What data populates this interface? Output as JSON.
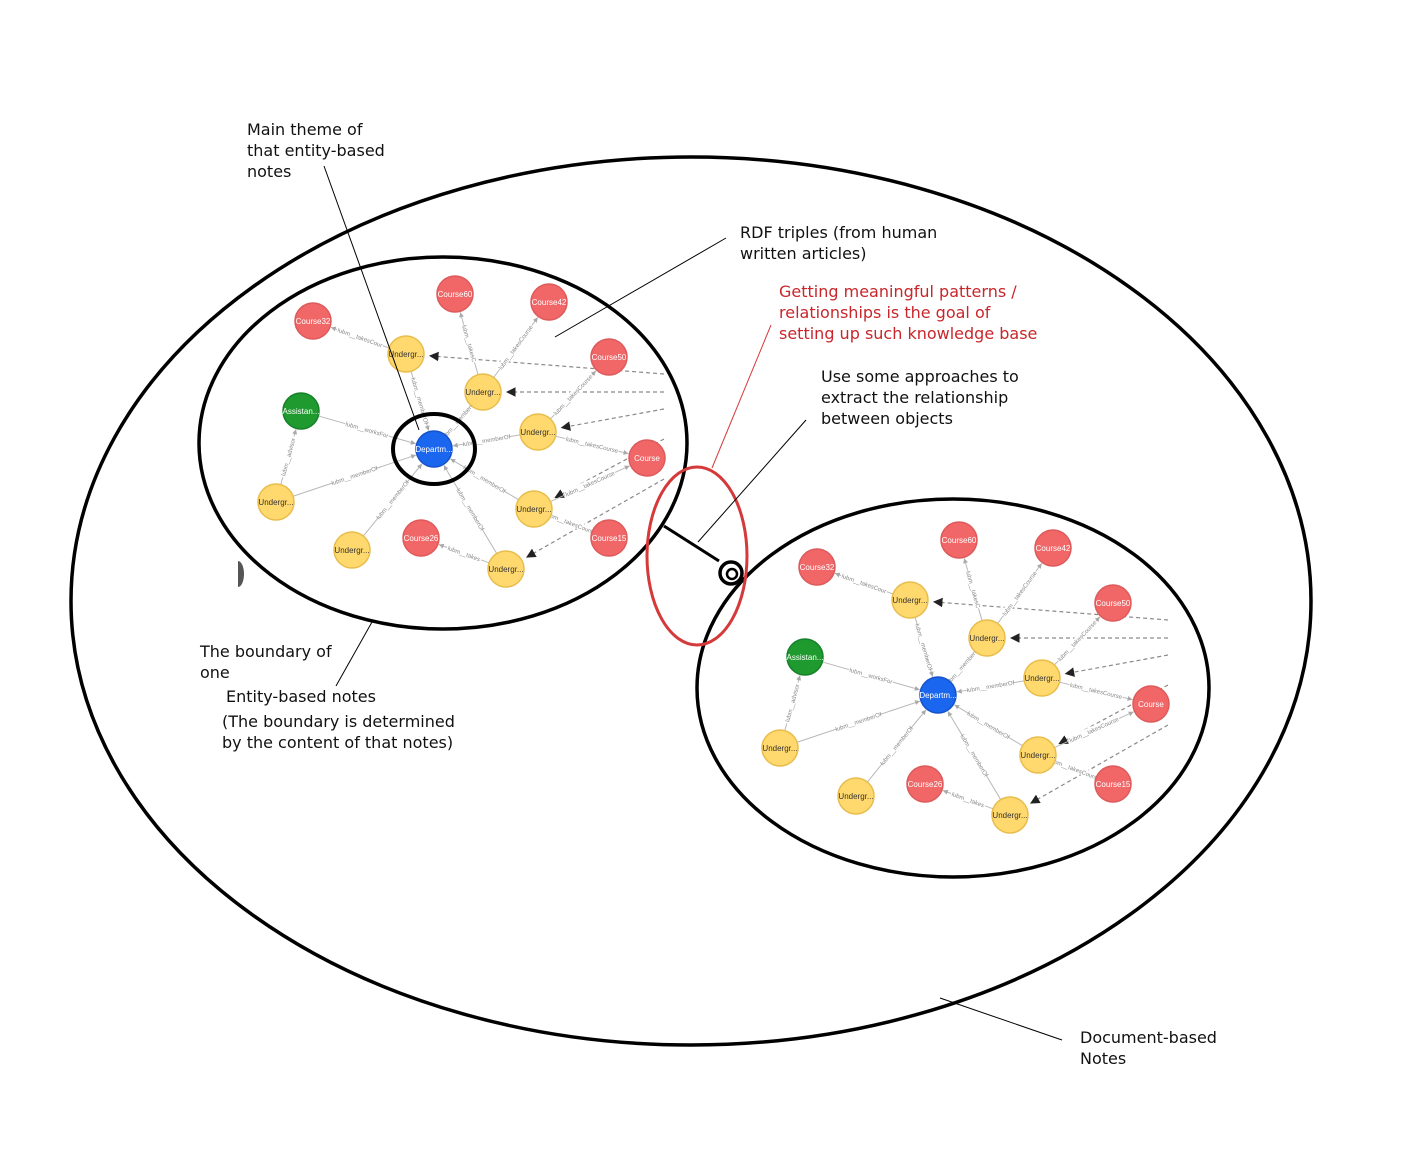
{
  "annotations": {
    "main_theme": "Main theme of\nthat entity-based\nnotes",
    "rdf_triples": "RDF triples (from human\nwritten articles)",
    "goal": "Getting meaningful patterns /\nrelationships is the goal of\nsetting up such knowledge base",
    "approaches": "Use some approaches to\nextract the relationship\nbetween objects",
    "boundary_a": "The boundary of\none",
    "boundary_b": "Entity-based notes",
    "boundary_c": "(The boundary is determined\nby the content of that notes)",
    "document_notes": "Document-based\nNotes"
  },
  "colors": {
    "outline": "#000000",
    "highlight": "#d43a3a",
    "course": "#f16667",
    "course_stroke": "#dd5a5b",
    "undergrad": "#ffd86e",
    "undergrad_stroke": "#e8bd4c",
    "assistant": "#1e9a2e",
    "department": "#1a66ee",
    "edge": "#b8b8b8",
    "dashed_edge": "#8a8a8a"
  },
  "graph": {
    "nodes": [
      {
        "id": "course32",
        "label": "Course32",
        "type": "course"
      },
      {
        "id": "course60",
        "label": "Course60",
        "type": "course"
      },
      {
        "id": "course42",
        "label": "Course42",
        "type": "course"
      },
      {
        "id": "course50",
        "label": "Course50",
        "type": "course"
      },
      {
        "id": "course_cut",
        "label": "Course",
        "type": "course"
      },
      {
        "id": "course26",
        "label": "Course26",
        "type": "course"
      },
      {
        "id": "course15",
        "label": "Course15",
        "type": "course"
      },
      {
        "id": "ug1",
        "label": "Undergr...",
        "type": "undergrad"
      },
      {
        "id": "ug2",
        "label": "Undergr...",
        "type": "undergrad"
      },
      {
        "id": "ug3",
        "label": "Undergr...",
        "type": "undergrad"
      },
      {
        "id": "ug4",
        "label": "Undergr...",
        "type": "undergrad"
      },
      {
        "id": "ug5",
        "label": "Undergr...",
        "type": "undergrad"
      },
      {
        "id": "ug6",
        "label": "Undergr...",
        "type": "undergrad"
      },
      {
        "id": "ug7",
        "label": "Undergr...",
        "type": "undergrad"
      },
      {
        "id": "assistant",
        "label": "Assistan...",
        "type": "assistant"
      },
      {
        "id": "department",
        "label": "Departm...",
        "type": "department"
      }
    ],
    "edges": [
      {
        "from": "ug1",
        "to": "course32",
        "label": "lubm__takesCour"
      },
      {
        "from": "ug1",
        "to": "department",
        "label": "lubm__memberOf"
      },
      {
        "from": "ug2",
        "to": "course60",
        "label": "lubm__takesC"
      },
      {
        "from": "ug2",
        "to": "course42",
        "label": "lubm__takesCourse"
      },
      {
        "from": "ug2",
        "to": "department",
        "label": "lubm__memberOf"
      },
      {
        "from": "ug3",
        "to": "course50",
        "label": "lubm__takesCourse"
      },
      {
        "from": "ug3",
        "to": "department",
        "label": "lubm__memberOf"
      },
      {
        "from": "ug3",
        "to": "course_cut",
        "label": "lubm__takesCourse"
      },
      {
        "from": "assistant",
        "to": "department",
        "label": "lubm__worksFor"
      },
      {
        "from": "ug5",
        "to": "assistant",
        "label": "lubm__advisor"
      },
      {
        "from": "ug5",
        "to": "department",
        "label": "lubm__memberOf"
      },
      {
        "from": "ug6",
        "to": "department",
        "label": "lubm__memberOf"
      },
      {
        "from": "ug4",
        "to": "department",
        "label": "lubm__memberOf"
      },
      {
        "from": "ug4",
        "to": "course_cut",
        "label": "lubm__takesCourse"
      },
      {
        "from": "ug4",
        "to": "course15",
        "label": "lubm__takesCourse"
      },
      {
        "from": "ug7",
        "to": "department",
        "label": "lubm__memberOf"
      },
      {
        "from": "ug7",
        "to": "course26",
        "label": "lubm__takes"
      }
    ]
  }
}
